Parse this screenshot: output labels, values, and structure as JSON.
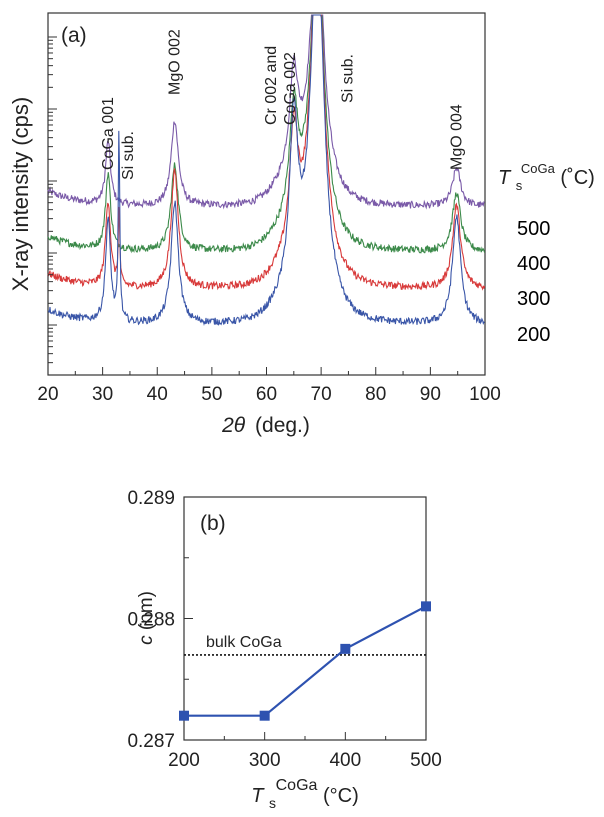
{
  "chart_data": [
    {
      "type": "line",
      "panel_label": "(a)",
      "xlabel_symbol": "2θ",
      "xlabel_unit": "(deg.)",
      "ylabel": "X-ray intensity (cps)",
      "xlim": [
        20,
        100
      ],
      "x_ticks": [
        "20",
        "30",
        "40",
        "50",
        "60",
        "70",
        "80",
        "90",
        "100"
      ],
      "y_scale": "log",
      "legend_title_main": "T",
      "legend_title_sub": "s",
      "legend_title_sup": "CoGa",
      "legend_title_unit": " (˚C)",
      "legend_placement": "right",
      "series": [
        {
          "name": "500",
          "color": "#7a5aa8",
          "baseline": 3.55
        },
        {
          "name": "400",
          "color": "#3c8a4a",
          "baseline": 2.55
        },
        {
          "name": "300",
          "color": "#d83a3a",
          "baseline": 1.72
        },
        {
          "name": "200",
          "color": "#3a56a8",
          "baseline": 0.92
        }
      ],
      "peaks": [
        {
          "x": 31.0,
          "label": "CoGa 001",
          "heights": [
            1.4,
            1.7,
            1.9,
            2.3
          ],
          "width": 0.55
        },
        {
          "x": 33.0,
          "label": "Si sub.",
          "heights": [
            0.0,
            0.0,
            1.7,
            4.3
          ],
          "width": 0.16
        },
        {
          "x": 43.2,
          "label": "MgO 002",
          "heights": [
            1.9,
            1.9,
            2.6,
            2.7
          ],
          "width": 0.8
        },
        {
          "x": 65.0,
          "label": "Cr 002 and\nCoGa 002",
          "heights": [
            2.1,
            2.3,
            2.6,
            3.6
          ],
          "width": 0.9
        },
        {
          "x": 69.3,
          "label": "Si sub.",
          "heights": [
            5.6,
            6.5,
            7.3,
            8.1
          ],
          "width": 1.4
        },
        {
          "x": 94.8,
          "label": "MgO 004",
          "heights": [
            0.85,
            1.3,
            1.85,
            2.4
          ],
          "width": 0.9
        }
      ],
      "annotations": [
        {
          "label": "CoGa 001",
          "x": 31.0,
          "lines": [
            "CoGa 001"
          ]
        },
        {
          "label": "Si sub.",
          "x": 34.6,
          "lines": [
            "Si sub."
          ]
        },
        {
          "label": "MgO 002",
          "x": 43.2,
          "lines": [
            "MgO 002"
          ]
        },
        {
          "label": "Cr 002 and CoGa 002",
          "x": 63.6,
          "lines": [
            "Cr 002 and",
            "CoGa 002"
          ]
        },
        {
          "label": "Si sub.",
          "x": 74.8,
          "lines": [
            "Si sub."
          ]
        },
        {
          "label": "MgO 004",
          "x": 94.8,
          "lines": [
            "MgO 004"
          ]
        }
      ]
    },
    {
      "type": "line",
      "panel_label": "(b)",
      "ylabel_symbol": "c",
      "ylabel_unit": " (nm)",
      "xlabel_main": "T",
      "xlabel_sub": "s",
      "xlabel_sup": "CoGa",
      "xlabel_unit": " (°C)",
      "x": [
        200,
        300,
        400,
        500
      ],
      "y": [
        0.2872,
        0.2872,
        0.28775,
        0.2881
      ],
      "xlim": [
        200,
        500
      ],
      "ylim": [
        0.287,
        0.289
      ],
      "x_ticks": [
        "200",
        "300",
        "400",
        "500"
      ],
      "y_ticks": [
        "0.287",
        "0.288",
        "0.289"
      ],
      "reference_line": {
        "label": "bulk CoGa",
        "y": 0.2877
      },
      "color": "#2e52b0"
    }
  ]
}
